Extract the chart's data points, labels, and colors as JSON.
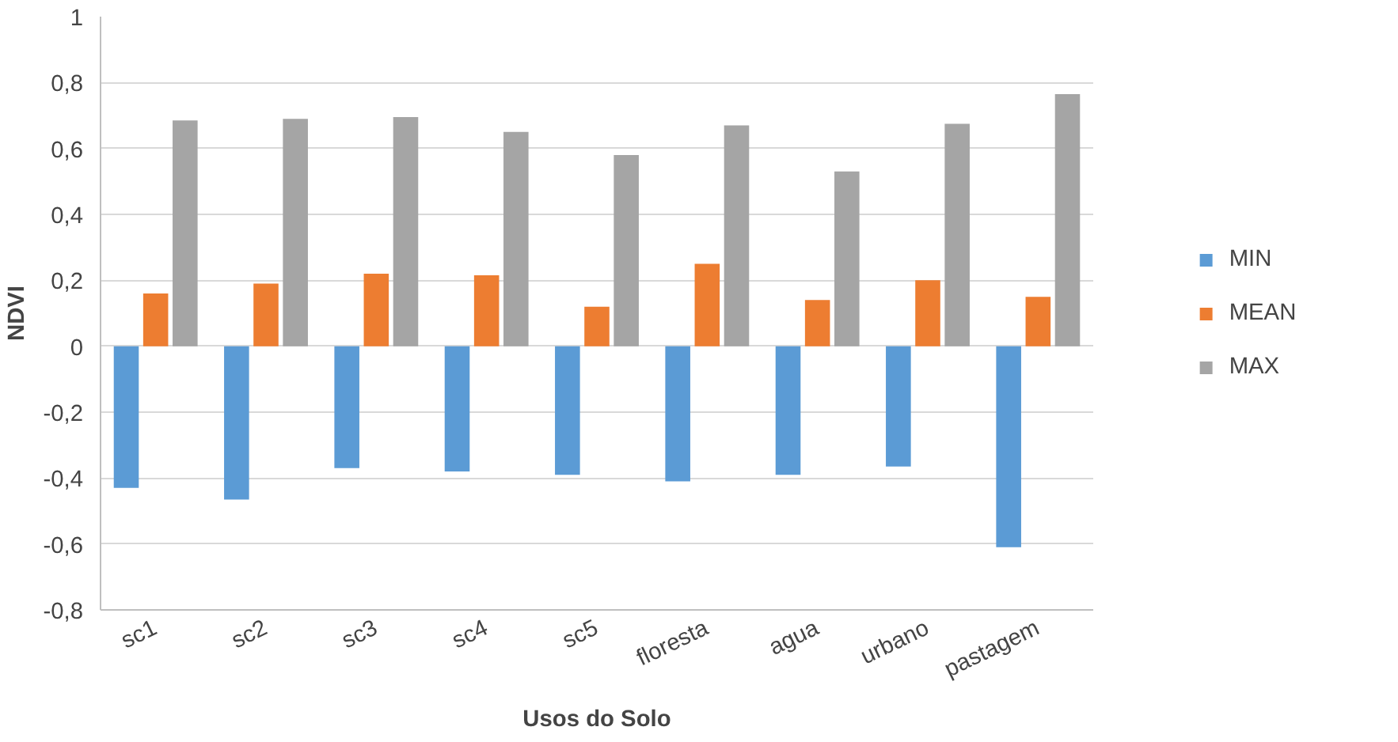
{
  "chart_data": {
    "type": "bar",
    "xlabel": "Usos do Solo",
    "ylabel": "NDVI",
    "categories": [
      "sc1",
      "sc2",
      "sc3",
      "sc4",
      "sc5",
      "floresta",
      "agua",
      "urbano",
      "pastagem"
    ],
    "series": [
      {
        "name": "MIN",
        "color": "#5b9bd5",
        "values": [
          -0.43,
          -0.465,
          -0.37,
          -0.38,
          -0.39,
          -0.41,
          -0.39,
          -0.365,
          -0.61
        ]
      },
      {
        "name": "MEAN",
        "color": "#ed7d31",
        "values": [
          0.16,
          0.19,
          0.22,
          0.215,
          0.12,
          0.25,
          0.14,
          0.2,
          0.15
        ]
      },
      {
        "name": "MAX",
        "color": "#a5a5a5",
        "values": [
          0.685,
          0.69,
          0.695,
          0.65,
          0.58,
          0.67,
          0.53,
          0.675,
          0.765
        ]
      }
    ],
    "ylim": [
      -0.8,
      1
    ],
    "yticks": [
      {
        "value": -0.8,
        "label": "-0,8"
      },
      {
        "value": -0.6,
        "label": "-0,6"
      },
      {
        "value": -0.4,
        "label": "-0,4"
      },
      {
        "value": -0.2,
        "label": "-0,2"
      },
      0,
      {
        "value": 0.2,
        "label": "0,2"
      },
      {
        "value": 0.4,
        "label": "0,4"
      },
      {
        "value": 0.6,
        "label": "0,6"
      },
      {
        "value": 0.8,
        "label": "0,8"
      },
      1
    ],
    "grid": "y",
    "legend": "right"
  }
}
